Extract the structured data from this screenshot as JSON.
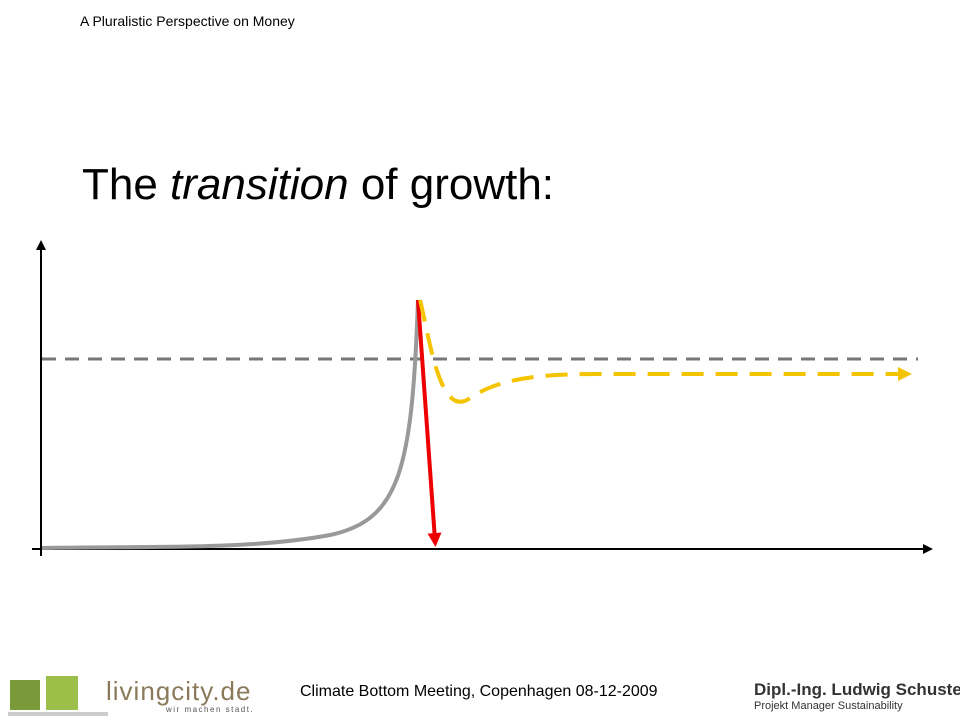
{
  "header": {
    "title": "A Pluralistic Perspective on Money"
  },
  "slide": {
    "title": {
      "before": "The ",
      "emphasis": "transition",
      "after": " of growth:"
    }
  },
  "footer": {
    "event": "Climate Bottom Meeting, Copenhagen 08-12-2009",
    "logo": {
      "name": "livingcity.de",
      "tagline": "wir machen stadt."
    },
    "author": {
      "name": "Dipl.-Ing. Ludwig Schuster",
      "role": "Projekt Manager Sustainability"
    }
  }
}
